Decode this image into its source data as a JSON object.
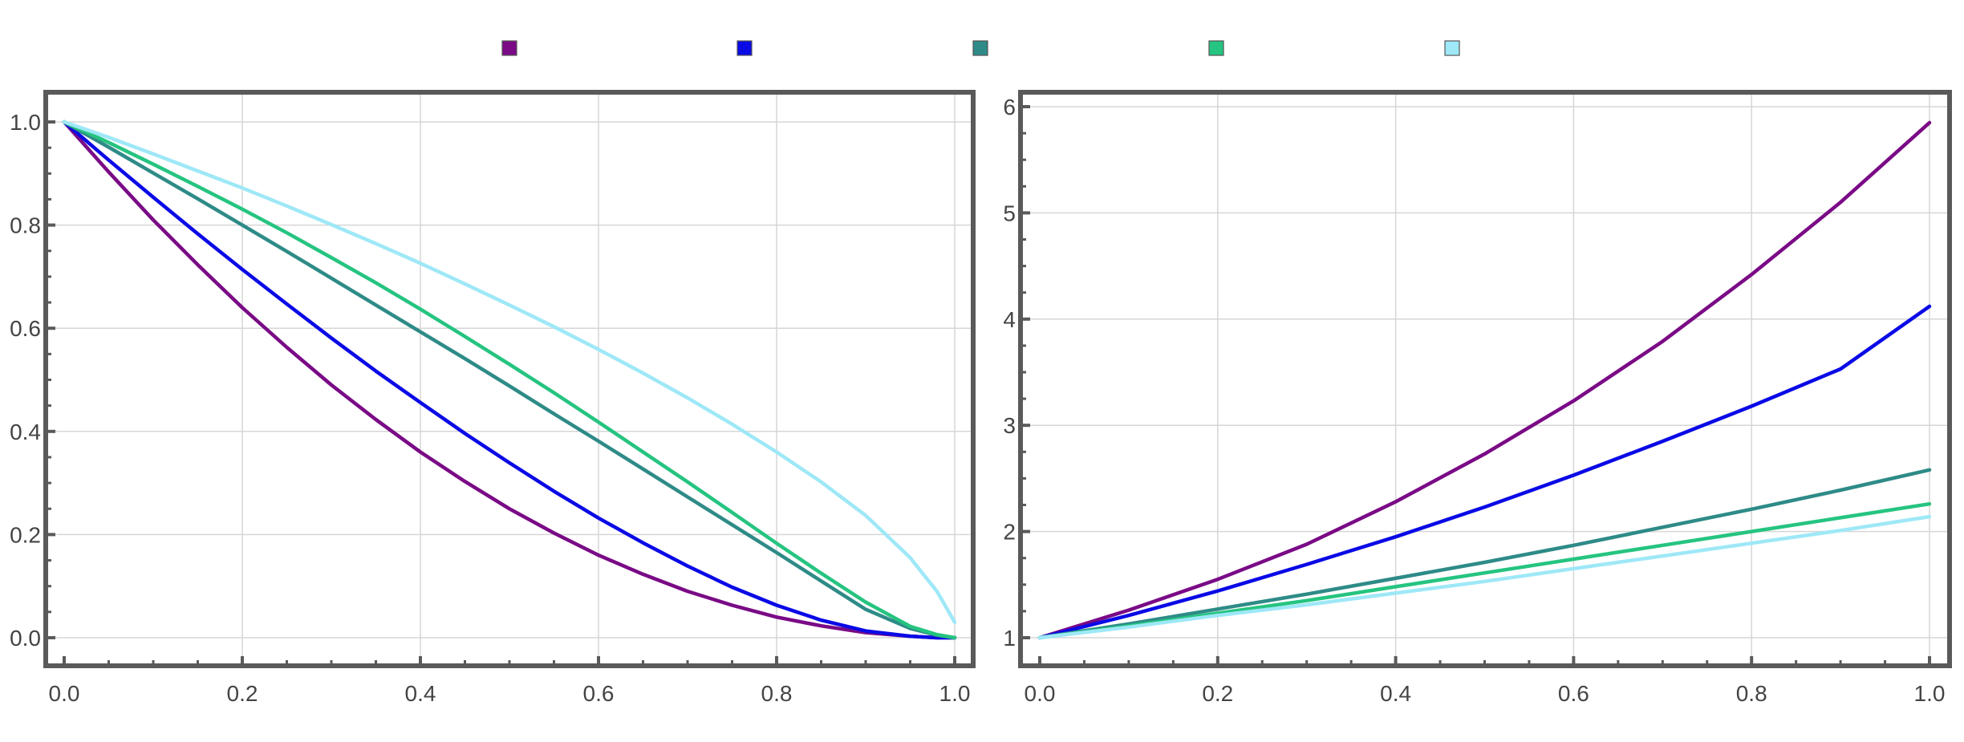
{
  "chart_data": [
    {
      "type": "line",
      "title": "",
      "xlabel": "",
      "ylabel": "",
      "xlim": [
        0,
        1
      ],
      "ylim": [
        0,
        1
      ],
      "x_ticks": [
        0.0,
        0.2,
        0.4,
        0.6,
        0.8,
        1.0
      ],
      "x_tick_labels": [
        "0.0",
        "0.2",
        "0.4",
        "0.6",
        "0.8",
        "1.0"
      ],
      "y_ticks": [
        0.0,
        0.2,
        0.4,
        0.6,
        0.8,
        1.0
      ],
      "y_tick_labels": [
        "0.0",
        "0.2",
        "0.4",
        "0.6",
        "0.8",
        "1.0"
      ],
      "grid": true,
      "legend": "top-center",
      "x": [
        0,
        0.05,
        0.1,
        0.15,
        0.2,
        0.25,
        0.3,
        0.35,
        0.4,
        0.45,
        0.5,
        0.55,
        0.6,
        0.65,
        0.7,
        0.75,
        0.8,
        0.85,
        0.9,
        0.95,
        0.98,
        1.0
      ],
      "series": [
        {
          "color": "#7a0a86",
          "values": [
            1.0,
            0.903,
            0.81,
            0.723,
            0.64,
            0.563,
            0.49,
            0.423,
            0.36,
            0.303,
            0.25,
            0.203,
            0.16,
            0.123,
            0.09,
            0.063,
            0.04,
            0.023,
            0.01,
            0.003,
            0.0,
            0.0
          ]
        },
        {
          "color": "#0a0ae6",
          "values": [
            1.0,
            0.926,
            0.854,
            0.783,
            0.714,
            0.647,
            0.581,
            0.517,
            0.456,
            0.396,
            0.339,
            0.284,
            0.232,
            0.184,
            0.139,
            0.098,
            0.063,
            0.034,
            0.013,
            0.003,
            0.0,
            0.0
          ]
        },
        {
          "color": "#2e8b87",
          "values": [
            1.0,
            0.951,
            0.901,
            0.851,
            0.8,
            0.749,
            0.697,
            0.645,
            0.593,
            0.541,
            0.488,
            0.434,
            0.381,
            0.327,
            0.273,
            0.219,
            0.165,
            0.11,
            0.055,
            0.018,
            0.005,
            0.0
          ]
        },
        {
          "color": "#25c480",
          "values": [
            1.0,
            0.96,
            0.918,
            0.875,
            0.831,
            0.785,
            0.737,
            0.688,
            0.637,
            0.584,
            0.53,
            0.475,
            0.418,
            0.36,
            0.302,
            0.243,
            0.183,
            0.125,
            0.069,
            0.022,
            0.006,
            0.0
          ]
        },
        {
          "color": "#9ee8f7",
          "values": [
            1.0,
            0.97,
            0.938,
            0.905,
            0.872,
            0.837,
            0.801,
            0.764,
            0.726,
            0.686,
            0.645,
            0.603,
            0.559,
            0.513,
            0.465,
            0.414,
            0.36,
            0.302,
            0.237,
            0.155,
            0.09,
            0.03
          ]
        }
      ]
    },
    {
      "type": "line",
      "title": "",
      "xlabel": "",
      "ylabel": "",
      "xlim": [
        0,
        1
      ],
      "ylim": [
        1,
        6
      ],
      "x_ticks": [
        0.0,
        0.2,
        0.4,
        0.6,
        0.8,
        1.0
      ],
      "x_tick_labels": [
        "0.0",
        "0.2",
        "0.4",
        "0.6",
        "0.8",
        "1.0"
      ],
      "y_ticks": [
        1,
        2,
        3,
        4,
        5,
        6
      ],
      "y_tick_labels": [
        "1",
        "2",
        "3",
        "4",
        "5",
        "6"
      ],
      "grid": true,
      "legend": "top-center",
      "x": [
        0,
        0.1,
        0.2,
        0.3,
        0.4,
        0.5,
        0.6,
        0.7,
        0.8,
        0.9,
        1.0
      ],
      "series": [
        {
          "color": "#7a0a86",
          "values": [
            1.0,
            1.26,
            1.55,
            1.88,
            2.28,
            2.73,
            3.23,
            3.79,
            4.42,
            5.1,
            5.85
          ]
        },
        {
          "color": "#0a0ae6",
          "values": [
            1.0,
            1.21,
            1.44,
            1.69,
            1.95,
            2.23,
            2.53,
            2.85,
            3.18,
            3.53,
            4.12
          ]
        },
        {
          "color": "#2e8b87",
          "values": [
            1.0,
            1.13,
            1.27,
            1.41,
            1.56,
            1.71,
            1.87,
            2.04,
            2.21,
            2.39,
            2.58
          ]
        },
        {
          "color": "#25c480",
          "values": [
            1.0,
            1.11,
            1.23,
            1.35,
            1.48,
            1.61,
            1.74,
            1.87,
            2.0,
            2.13,
            2.26
          ]
        },
        {
          "color": "#9ee8f7",
          "values": [
            1.0,
            1.1,
            1.21,
            1.31,
            1.42,
            1.53,
            1.65,
            1.77,
            1.89,
            2.01,
            2.14
          ]
        }
      ]
    }
  ]
}
